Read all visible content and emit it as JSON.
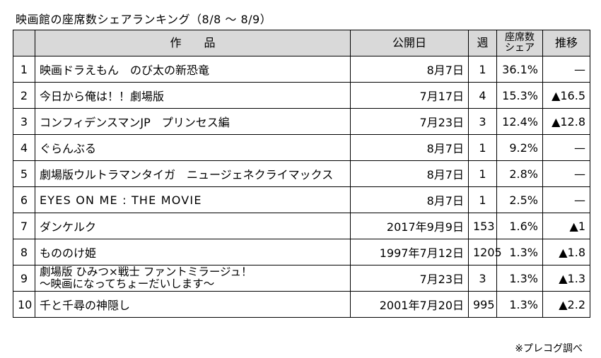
{
  "title": "映画館の座席数シェアランキング（8/8 ～ 8/9）",
  "headers": {
    "rank": "",
    "film": "作　　品",
    "release": "公開日",
    "weeks": "週",
    "share_line1": "座席数",
    "share_line2": "シェア",
    "trend": "推移"
  },
  "rows": [
    {
      "rank": "1",
      "film": "映画ドラえもん　のび太の新恐竜",
      "release": "8月7日",
      "weeks": "1",
      "share": "36.1%",
      "trend": "—"
    },
    {
      "rank": "2",
      "film": "今日から俺は！！劇場版",
      "release": "7月17日",
      "weeks": "4",
      "share": "15.3%",
      "trend": "▲16.5"
    },
    {
      "rank": "3",
      "film": "コンフィデンスマンJP　プリンセス編",
      "release": "7月23日",
      "weeks": "3",
      "share": "12.4%",
      "trend": "▲12.8"
    },
    {
      "rank": "4",
      "film": "ぐらんぶる",
      "release": "8月7日",
      "weeks": "1",
      "share": "9.2%",
      "trend": "—"
    },
    {
      "rank": "5",
      "film": "劇場版ウルトラマンタイガ　ニュージェネクライマックス",
      "release": "8月7日",
      "weeks": "1",
      "share": "2.8%",
      "trend": "—"
    },
    {
      "rank": "6",
      "film": "EYES ON ME : THE MOVIE",
      "release": "8月7日",
      "weeks": "1",
      "share": "2.5%",
      "trend": "—"
    },
    {
      "rank": "7",
      "film": "ダンケルク",
      "release": "2017年9月9日",
      "weeks": "153",
      "share": "1.6%",
      "trend": "▲1"
    },
    {
      "rank": "8",
      "film": "もののけ姫",
      "release": "1997年7月12日",
      "weeks": "1205",
      "share": "1.3%",
      "trend": "▲1.8"
    },
    {
      "rank": "9",
      "film": "劇場版 ひみつ×戦士 ファントミラージュ！",
      "film_line2": "～映画になってちょーだいします～",
      "release": "7月23日",
      "weeks": "3",
      "share": "1.3%",
      "trend": "▲1.3"
    },
    {
      "rank": "10",
      "film": "千と千尋の神隠し",
      "release": "2001年7月20日",
      "weeks": "995",
      "share": "1.3%",
      "trend": "▲2.2"
    }
  ],
  "source": "※プレコグ調べ"
}
